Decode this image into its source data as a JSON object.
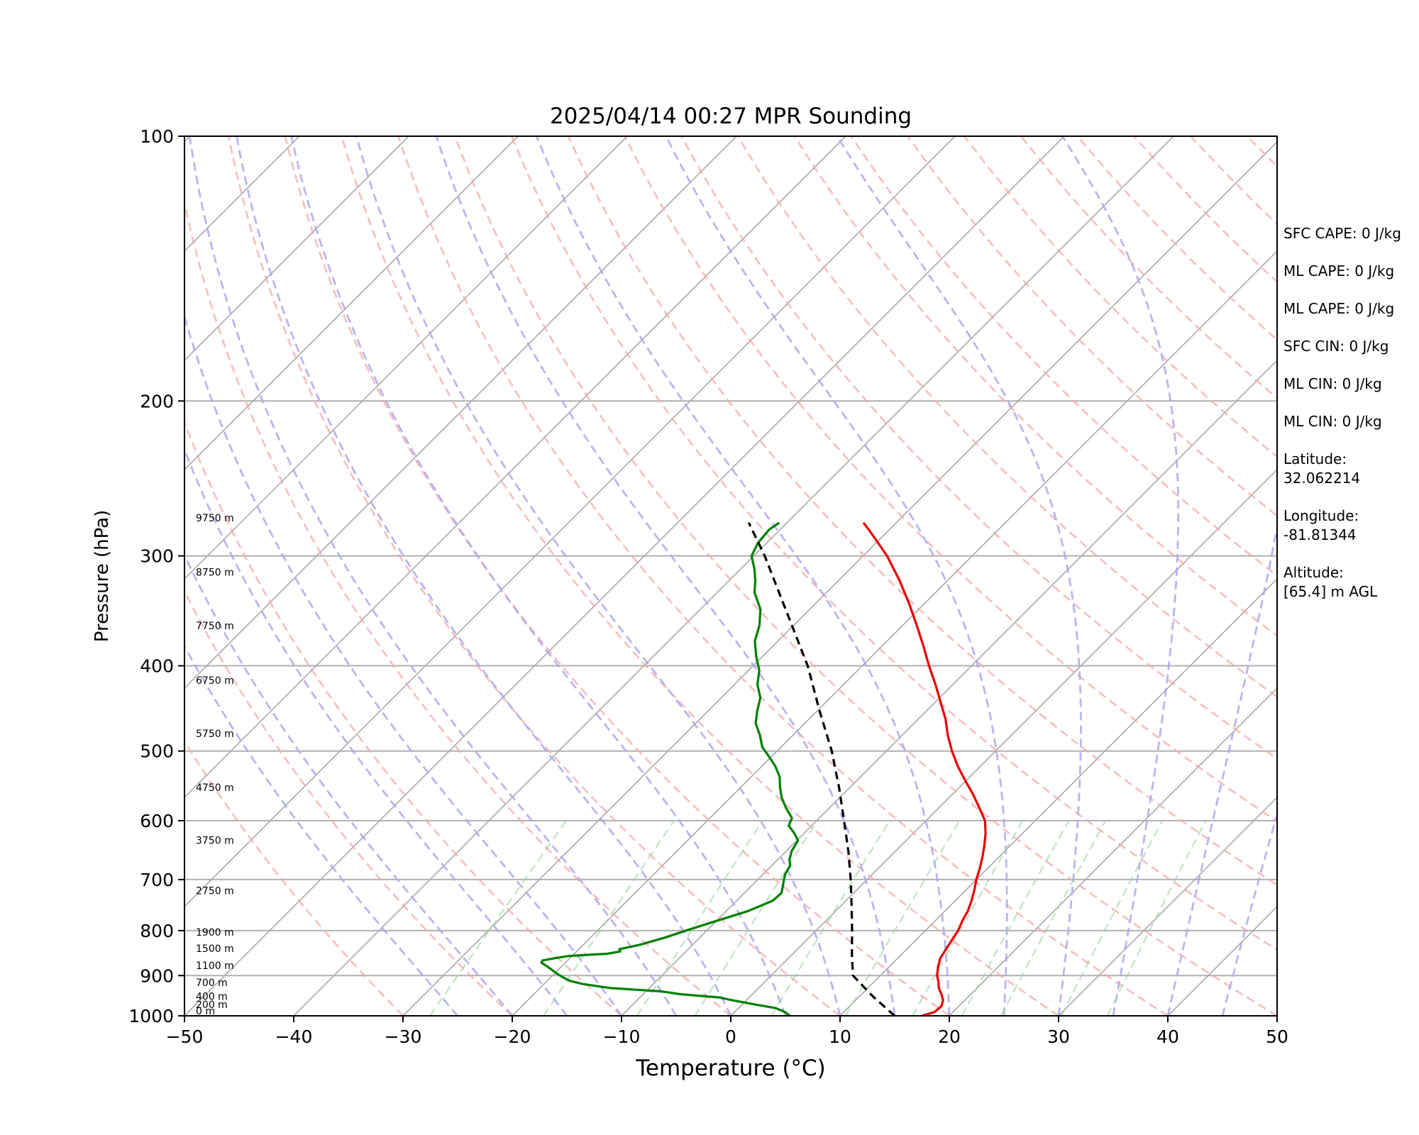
{
  "chart_data": {
    "type": "line",
    "title": "2025/04/14 00:27 MPR Sounding",
    "xlabel": "Temperature (°C)",
    "ylabel": "Pressure (hPa)",
    "xlim": [
      -50,
      50
    ],
    "ylim": [
      1000,
      100
    ],
    "y_scale": "log",
    "skew": "skew-T",
    "x_ticks": [
      -50,
      -40,
      -30,
      -20,
      -10,
      0,
      10,
      20,
      30,
      40,
      50
    ],
    "x_tick_labels": [
      "−50",
      "−40",
      "−30",
      "−20",
      "−10",
      "0",
      "10",
      "20",
      "30",
      "40",
      "50"
    ],
    "y_ticks": [
      1000,
      900,
      800,
      700,
      600,
      500,
      400,
      300,
      200,
      100
    ],
    "y_tick_labels": [
      "1000",
      "900",
      "800",
      "700",
      "600",
      "500",
      "400",
      "300",
      "200",
      "100"
    ],
    "height_labels": [
      {
        "text": "0 m",
        "p": 1000
      },
      {
        "text": "200 m",
        "p": 983
      },
      {
        "text": "400 m",
        "p": 963
      },
      {
        "text": "700 m",
        "p": 928
      },
      {
        "text": "1100 m",
        "p": 888
      },
      {
        "text": "1500 m",
        "p": 849
      },
      {
        "text": "1900 m",
        "p": 814
      },
      {
        "text": "2750 m",
        "p": 730
      },
      {
        "text": "3750 m",
        "p": 640
      },
      {
        "text": "4750 m",
        "p": 557
      },
      {
        "text": "5750 m",
        "p": 484
      },
      {
        "text": "6750 m",
        "p": 421
      },
      {
        "text": "7750 m",
        "p": 365
      },
      {
        "text": "8750 m",
        "p": 317
      },
      {
        "text": "9750 m",
        "p": 275
      }
    ],
    "series": [
      {
        "role": "temperature",
        "color": "#e80000",
        "points": [
          [
            1000,
            17.5
          ],
          [
            990,
            18.3
          ],
          [
            975,
            18.4
          ],
          [
            960,
            18.0
          ],
          [
            945,
            17.3
          ],
          [
            930,
            16.5
          ],
          [
            915,
            15.9
          ],
          [
            900,
            15.2
          ],
          [
            880,
            14.5
          ],
          [
            860,
            13.9
          ],
          [
            840,
            13.6
          ],
          [
            820,
            13.3
          ],
          [
            800,
            13.0
          ],
          [
            780,
            12.5
          ],
          [
            760,
            12.1
          ],
          [
            740,
            11.5
          ],
          [
            720,
            10.8
          ],
          [
            700,
            10.0
          ],
          [
            680,
            9.3
          ],
          [
            660,
            8.5
          ],
          [
            640,
            7.6
          ],
          [
            620,
            6.6
          ],
          [
            600,
            5.4
          ],
          [
            580,
            3.7
          ],
          [
            560,
            1.9
          ],
          [
            540,
            -0.1
          ],
          [
            520,
            -2.1
          ],
          [
            500,
            -4.0
          ],
          [
            480,
            -5.8
          ],
          [
            460,
            -7.5
          ],
          [
            440,
            -9.5
          ],
          [
            420,
            -11.6
          ],
          [
            400,
            -13.9
          ],
          [
            380,
            -16.2
          ],
          [
            360,
            -18.7
          ],
          [
            340,
            -21.4
          ],
          [
            320,
            -24.4
          ],
          [
            300,
            -27.8
          ],
          [
            290,
            -29.8
          ],
          [
            280,
            -31.9
          ],
          [
            275,
            -33.0
          ]
        ]
      },
      {
        "role": "dewpoint",
        "color": "#008000",
        "points": [
          [
            1000,
            5.4
          ],
          [
            990,
            4.6
          ],
          [
            980,
            3.4
          ],
          [
            970,
            1.0
          ],
          [
            960,
            -1.3
          ],
          [
            953,
            -2.7
          ],
          [
            945,
            -6.6
          ],
          [
            938,
            -8.6
          ],
          [
            930,
            -13.5
          ],
          [
            920,
            -16.5
          ],
          [
            912,
            -18.0
          ],
          [
            903,
            -19.0
          ],
          [
            895,
            -19.8
          ],
          [
            880,
            -21.2
          ],
          [
            870,
            -22.2
          ],
          [
            865,
            -22.3
          ],
          [
            860,
            -21.4
          ],
          [
            855,
            -20.3
          ],
          [
            850,
            -17.0
          ],
          [
            845,
            -16.0
          ],
          [
            840,
            -16.3
          ],
          [
            830,
            -14.8
          ],
          [
            815,
            -13.2
          ],
          [
            800,
            -11.9
          ],
          [
            780,
            -10.0
          ],
          [
            760,
            -8.0
          ],
          [
            740,
            -6.7
          ],
          [
            725,
            -6.6
          ],
          [
            705,
            -7.4
          ],
          [
            690,
            -8.0
          ],
          [
            675,
            -8.3
          ],
          [
            665,
            -8.9
          ],
          [
            650,
            -9.5
          ],
          [
            632,
            -9.9
          ],
          [
            620,
            -10.9
          ],
          [
            608,
            -12.1
          ],
          [
            596,
            -12.5
          ],
          [
            580,
            -14.0
          ],
          [
            565,
            -15.3
          ],
          [
            550,
            -16.4
          ],
          [
            535,
            -17.4
          ],
          [
            520,
            -18.8
          ],
          [
            505,
            -20.5
          ],
          [
            495,
            -21.7
          ],
          [
            480,
            -23.0
          ],
          [
            465,
            -24.5
          ],
          [
            450,
            -25.5
          ],
          [
            435,
            -26.4
          ],
          [
            420,
            -27.9
          ],
          [
            405,
            -29.0
          ],
          [
            390,
            -30.6
          ],
          [
            375,
            -32.1
          ],
          [
            360,
            -33.1
          ],
          [
            345,
            -34.5
          ],
          [
            330,
            -36.6
          ],
          [
            320,
            -37.6
          ],
          [
            310,
            -38.8
          ],
          [
            300,
            -40.2
          ],
          [
            290,
            -40.8
          ],
          [
            280,
            -41.0
          ],
          [
            275,
            -40.7
          ]
        ]
      },
      {
        "role": "parcel",
        "color": "#000000",
        "dashed": true,
        "points": [
          [
            1000,
            15.0
          ],
          [
            950,
            11.2
          ],
          [
            900,
            7.5
          ],
          [
            850,
            5.4
          ],
          [
            800,
            3.3
          ],
          [
            750,
            1.0
          ],
          [
            700,
            -1.5
          ],
          [
            650,
            -4.3
          ],
          [
            600,
            -7.5
          ],
          [
            550,
            -11.0
          ],
          [
            500,
            -15.0
          ],
          [
            450,
            -19.8
          ],
          [
            400,
            -25.0
          ],
          [
            350,
            -31.5
          ],
          [
            300,
            -39.0
          ],
          [
            275,
            -43.5
          ]
        ]
      }
    ]
  },
  "info": {
    "sfc_cape": "SFC CAPE: 0 J/kg",
    "ml_cape_1": "ML CAPE: 0 J/kg",
    "ml_cape_2": "ML CAPE: 0 J/kg",
    "sfc_cin": "SFC CIN: 0 J/kg",
    "ml_cin_1": "ML CIN: 0 J/kg",
    "ml_cin_2": "ML CIN: 0 J/kg",
    "latitude_label": "Latitude:",
    "latitude_value": "32.062214",
    "longitude_label": "Longitude:",
    "longitude_value": "-81.81344",
    "altitude_label": "Altitude:",
    "altitude_value": "[65.4] m AGL"
  }
}
